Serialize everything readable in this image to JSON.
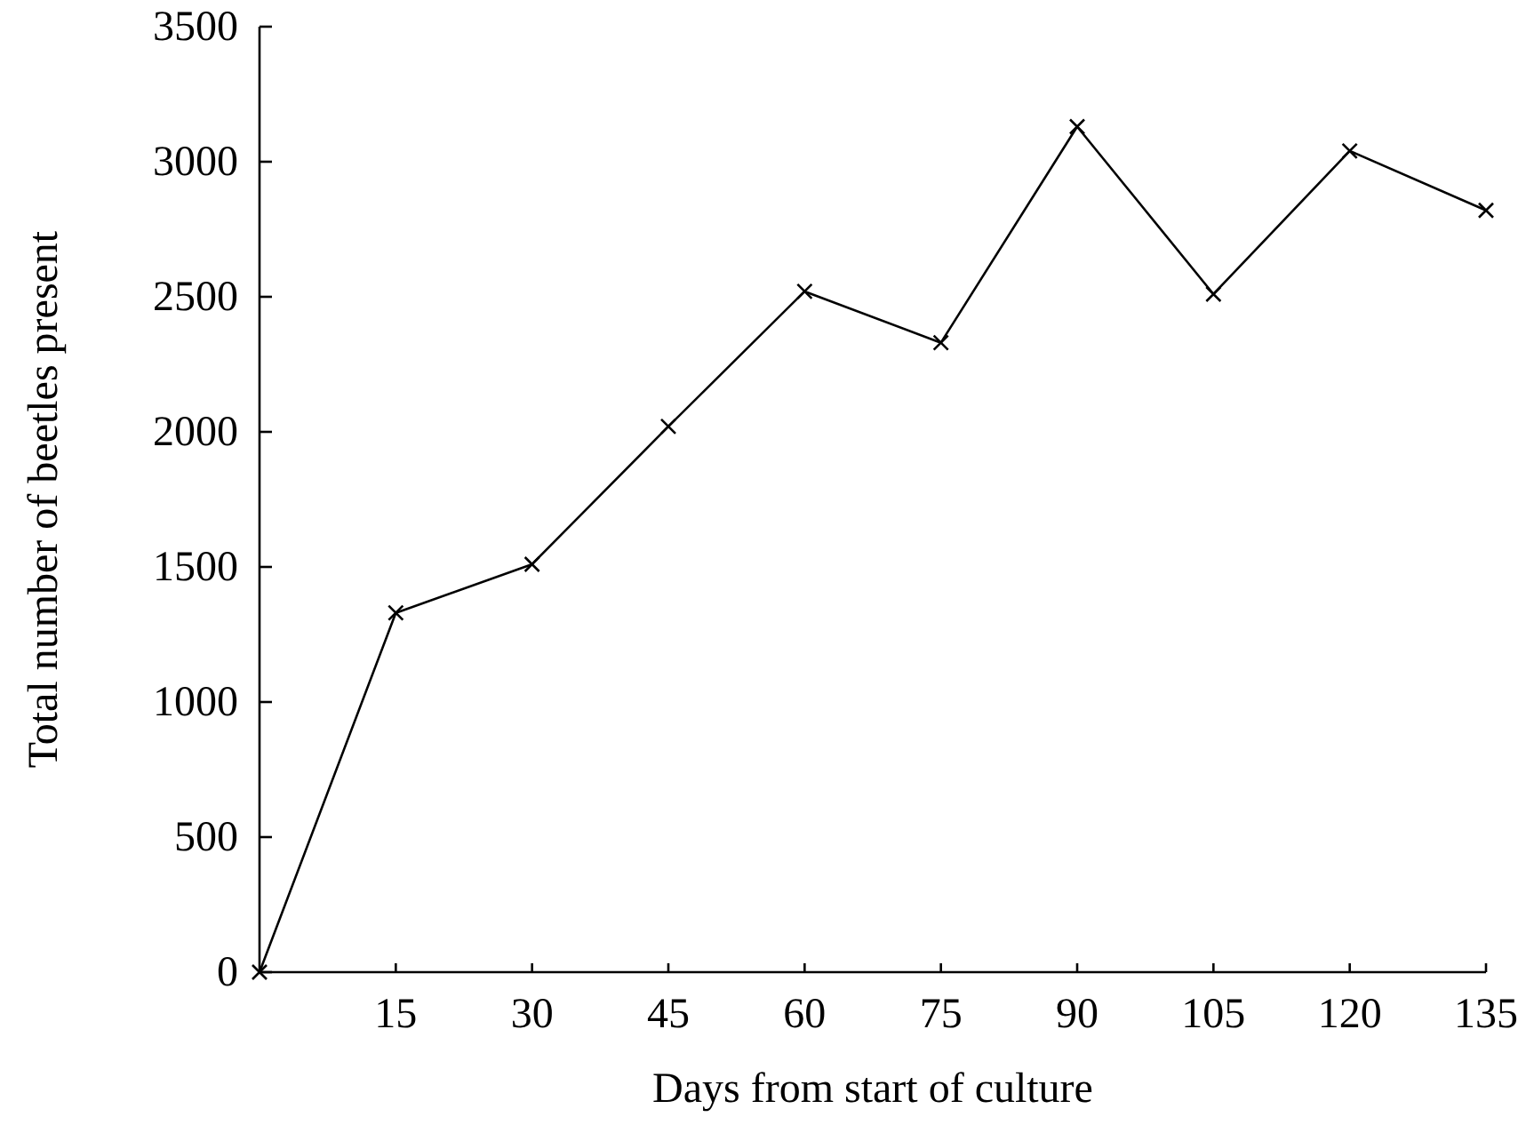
{
  "chart_data": {
    "type": "line",
    "xlabel": "Days from start of culture",
    "ylabel": "Total number of beetles present",
    "x": [
      0,
      15,
      30,
      45,
      60,
      75,
      90,
      105,
      120,
      135
    ],
    "series": [
      {
        "color": "#000000",
        "values": [
          0,
          1330,
          1510,
          2020,
          2520,
          2330,
          3130,
          2510,
          3040,
          2820
        ]
      }
    ],
    "xlim": [
      0,
      135
    ],
    "xticks": [
      15,
      30,
      45,
      60,
      75,
      90,
      105,
      120,
      135
    ],
    "ylim": [
      0,
      3500
    ],
    "yticks": [
      0,
      500,
      1000,
      1500,
      2000,
      2500,
      3000,
      3500
    ],
    "grid": false,
    "marker": "cross",
    "line_style": "solid"
  }
}
